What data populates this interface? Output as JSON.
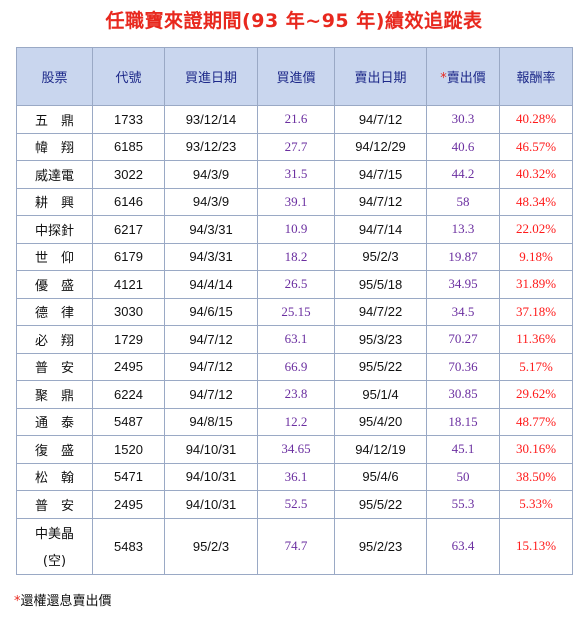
{
  "title": "任職寶來證期間(93 年~95 年)績效追蹤表",
  "headers": {
    "stock": "股票",
    "code": "代號",
    "buy_date": "買進日期",
    "buy_price": "買進價",
    "sell_date": "賣出日期",
    "sell_price_star": "*",
    "sell_price": "賣出價",
    "return": "報酬率"
  },
  "rows": [
    {
      "stock": "五　鼎",
      "code": "1733",
      "buy_date": "93/12/14",
      "buy_price": "21.6",
      "sell_date": "94/7/12",
      "sell_price": "30.3",
      "return": "40.28%"
    },
    {
      "stock": "幃　翔",
      "code": "6185",
      "buy_date": "93/12/23",
      "buy_price": "27.7",
      "sell_date": "94/12/29",
      "sell_price": "40.6",
      "return": "46.57%"
    },
    {
      "stock": "威達電",
      "code": "3022",
      "buy_date": "94/3/9",
      "buy_price": "31.5",
      "sell_date": "94/7/15",
      "sell_price": "44.2",
      "return": "40.32%"
    },
    {
      "stock": "耕　興",
      "code": "6146",
      "buy_date": "94/3/9",
      "buy_price": "39.1",
      "sell_date": "94/7/12",
      "sell_price": "58",
      "return": "48.34%"
    },
    {
      "stock": "中探針",
      "code": "6217",
      "buy_date": "94/3/31",
      "buy_price": "10.9",
      "sell_date": "94/7/14",
      "sell_price": "13.3",
      "return": "22.02%"
    },
    {
      "stock": "世　仰",
      "code": "6179",
      "buy_date": "94/3/31",
      "buy_price": "18.2",
      "sell_date": "95/2/3",
      "sell_price": "19.87",
      "return": "9.18%"
    },
    {
      "stock": "優　盛",
      "code": "4121",
      "buy_date": "94/4/14",
      "buy_price": "26.5",
      "sell_date": "95/5/18",
      "sell_price": "34.95",
      "return": "31.89%"
    },
    {
      "stock": "德　律",
      "code": "3030",
      "buy_date": "94/6/15",
      "buy_price": "25.15",
      "sell_date": "94/7/22",
      "sell_price": "34.5",
      "return": "37.18%"
    },
    {
      "stock": "必　翔",
      "code": "1729",
      "buy_date": "94/7/12",
      "buy_price": "63.1",
      "sell_date": "95/3/23",
      "sell_price": "70.27",
      "return": "11.36%"
    },
    {
      "stock": "普　安",
      "code": "2495",
      "buy_date": "94/7/12",
      "buy_price": "66.9",
      "sell_date": "95/5/22",
      "sell_price": "70.36",
      "return": "5.17%"
    },
    {
      "stock": "聚　鼎",
      "code": "6224",
      "buy_date": "94/7/12",
      "buy_price": "23.8",
      "sell_date": "95/1/4",
      "sell_price": "30.85",
      "return": "29.62%"
    },
    {
      "stock": "通　泰",
      "code": "5487",
      "buy_date": "94/8/15",
      "buy_price": "12.2",
      "sell_date": "95/4/20",
      "sell_price": "18.15",
      "return": "48.77%"
    },
    {
      "stock": "復　盛",
      "code": "1520",
      "buy_date": "94/10/31",
      "buy_price": "34.65",
      "sell_date": "94/12/19",
      "sell_price": "45.1",
      "return": "30.16%"
    },
    {
      "stock": "松　翰",
      "code": "5471",
      "buy_date": "94/10/31",
      "buy_price": "36.1",
      "sell_date": "95/4/6",
      "sell_price": "50",
      "return": "38.50%"
    },
    {
      "stock": "普　安",
      "code": "2495",
      "buy_date": "94/10/31",
      "buy_price": "52.5",
      "sell_date": "95/5/22",
      "sell_price": "55.3",
      "return": "5.33%"
    },
    {
      "stock_line1": "中美晶",
      "stock_line2": "(空)",
      "code": "5483",
      "buy_date": "95/2/3",
      "buy_price": "74.7",
      "sell_date": "95/2/23",
      "sell_price": "63.4",
      "return": "15.13%"
    }
  ],
  "footnote": {
    "star": "*",
    "text": "還權還息賣出價"
  },
  "colors": {
    "title": "#e8281e",
    "header_bg": "#c9d6ee",
    "header_text": "#1e2a8a",
    "price_text": "#6b2fa0",
    "return_text": "#ff1a1a"
  }
}
